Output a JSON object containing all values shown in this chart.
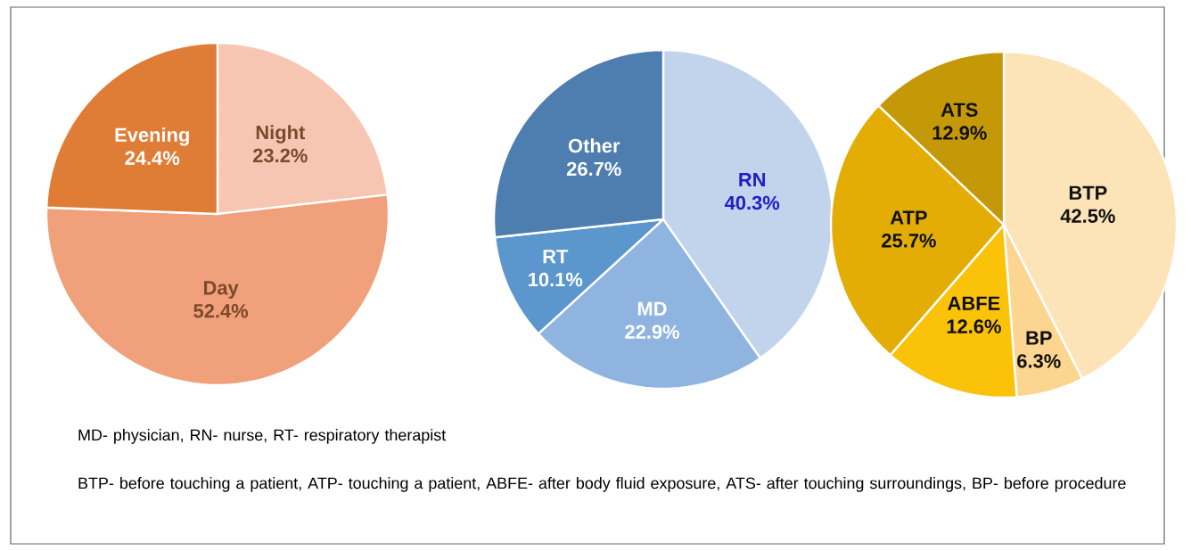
{
  "chart_data": [
    {
      "type": "pie",
      "categories": [
        "Night",
        "Day",
        "Evening"
      ],
      "values": [
        23.2,
        52.4,
        24.4
      ],
      "value_labels": [
        "23.2%",
        "52.4%",
        "24.4%"
      ],
      "colors": [
        "#f6c6b3",
        "#f0a07a",
        "#df7d36"
      ]
    },
    {
      "type": "pie",
      "categories": [
        "RN",
        "MD",
        "RT",
        "Other"
      ],
      "values": [
        40.3,
        22.9,
        10.1,
        26.7
      ],
      "value_labels": [
        "40.3%",
        "22.9%",
        "10.1%",
        "26.7%"
      ],
      "colors": [
        "#c1d4ec",
        "#8fb4e0",
        "#5b97cc",
        "#4e7eb0"
      ],
      "annotations": [
        "MD- physician, RN- nurse, RT- respiratory therapist"
      ]
    },
    {
      "type": "pie",
      "categories": [
        "BTP",
        "BP",
        "ABFE",
        "ATP",
        "ATS"
      ],
      "values": [
        42.5,
        6.3,
        12.6,
        25.7,
        12.9
      ],
      "value_labels": [
        "42.5%",
        "6.3%",
        "12.6%",
        "25.7%",
        "12.9%"
      ],
      "colors": [
        "#fde3b8",
        "#fcd590",
        "#fbc20a",
        "#e3ad05",
        "#c49806"
      ],
      "annotations": [
        "BTP- before touching a patient, ATP- touching a patient, ABFE- after body fluid exposure, ATS- after touching surroundings,  BP- before procedure"
      ]
    }
  ]
}
